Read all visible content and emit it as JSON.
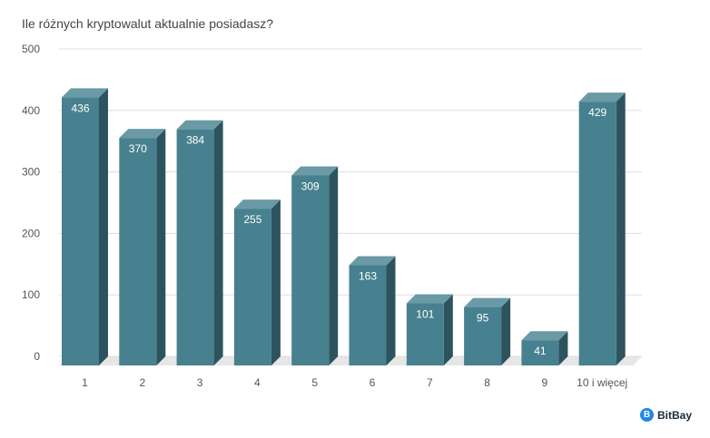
{
  "chart_data": {
    "type": "bar",
    "title": "Ile różnych kryptowalut aktualnie posiadasz?",
    "categories": [
      "1",
      "2",
      "3",
      "4",
      "5",
      "6",
      "7",
      "8",
      "9",
      "10 i więcej"
    ],
    "values": [
      436,
      370,
      384,
      255,
      309,
      163,
      101,
      95,
      41,
      429
    ],
    "xlabel": "",
    "ylabel": "",
    "ylim": [
      0,
      500
    ],
    "yticks": [
      0,
      100,
      200,
      300,
      400,
      500
    ],
    "grid": true,
    "legend": "none",
    "style": "3d-bars"
  },
  "colors": {
    "bar_front": "#47808e",
    "bar_top": "#6a9aa6",
    "bar_side": "#2d545e",
    "floor": "#e6e6e6",
    "grid": "#dddddd"
  },
  "brand": {
    "name": "BitBay",
    "icon": "bitbay-logo-icon"
  }
}
